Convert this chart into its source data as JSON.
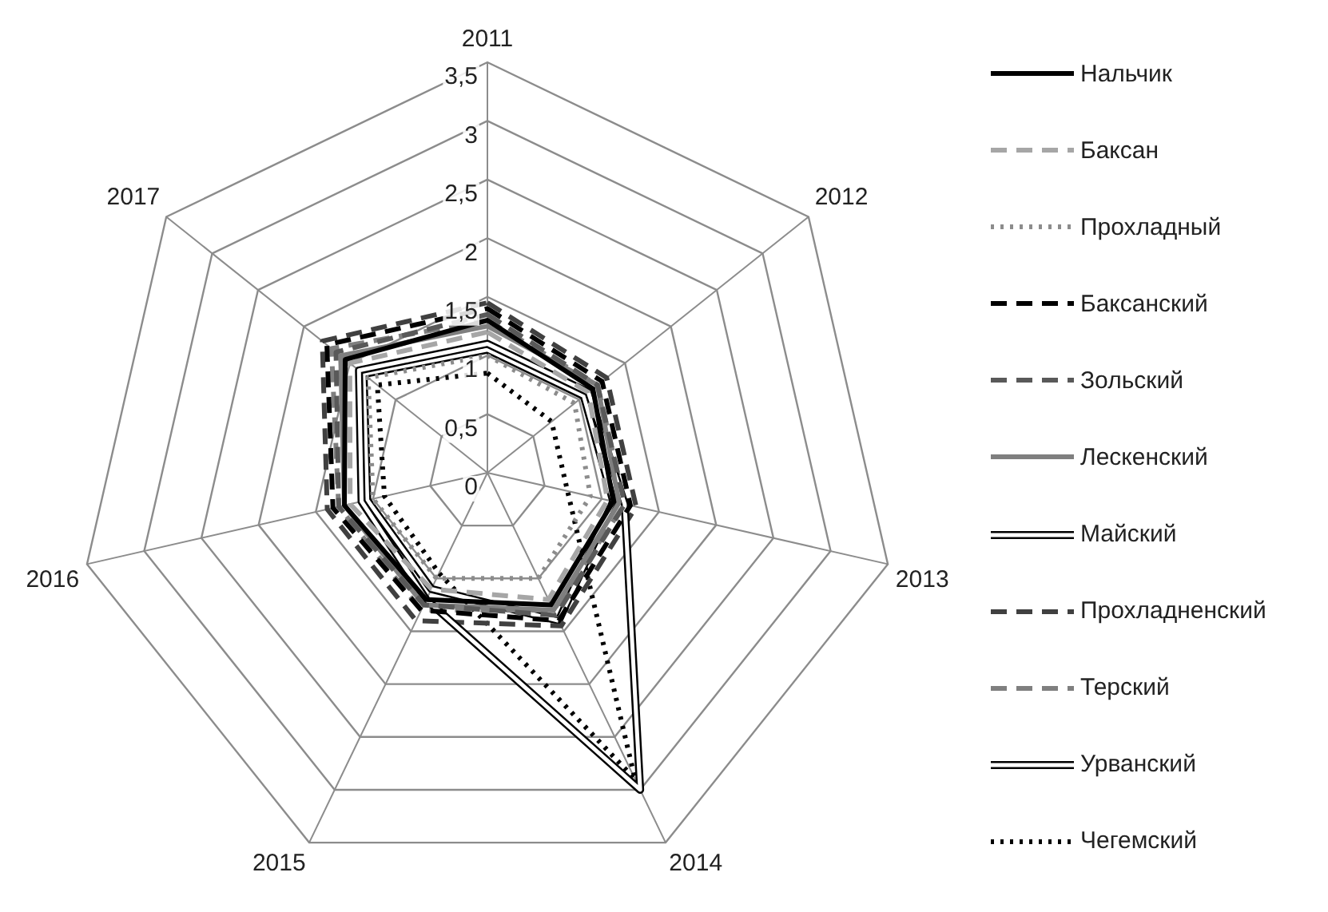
{
  "chart_data": {
    "type": "radar",
    "categories": [
      "2011",
      "2012",
      "2013",
      "2014",
      "2015",
      "2016",
      "2017"
    ],
    "ylim": [
      0,
      3.5
    ],
    "yticks": [
      0,
      {
        "value": 0.5,
        "label": "0,5"
      },
      1,
      {
        "value": 1.5,
        "label": "1,5"
      },
      2,
      {
        "value": 2.5,
        "label": "2,5"
      },
      3,
      {
        "value": 3.5,
        "label": "3,5"
      }
    ],
    "grid": true,
    "legend": "right",
    "marker": "none",
    "series": [
      {
        "name": "Нальчик",
        "color": "#000000",
        "line_style": "solid",
        "values": [
          1.3,
          1.15,
          1.1,
          1.25,
          1.2,
          1.25,
          1.55
        ]
      },
      {
        "name": "Баксан",
        "color": "#a6a6a6",
        "line_style": "dashed",
        "values": [
          1.2,
          1.1,
          1.05,
          1.2,
          1.1,
          1.2,
          1.5
        ]
      },
      {
        "name": "Прохладный",
        "color": "#8c8c8c",
        "line_style": "dotted",
        "values": [
          1.0,
          0.95,
          0.9,
          1.0,
          1.0,
          1.0,
          1.3
        ]
      },
      {
        "name": "Баксанский",
        "color": "#000000",
        "line_style": "dashed",
        "values": [
          1.4,
          1.25,
          1.25,
          1.4,
          1.3,
          1.35,
          1.75
        ]
      },
      {
        "name": "Зольский",
        "color": "#595959",
        "line_style": "dashed",
        "values": [
          1.35,
          1.2,
          1.2,
          1.35,
          1.25,
          1.3,
          1.65
        ]
      },
      {
        "name": "Лескенский",
        "color": "#7f7f7f",
        "line_style": "solid",
        "values": [
          1.25,
          1.2,
          1.15,
          1.3,
          1.25,
          1.25,
          1.6
        ]
      },
      {
        "name": "Майский",
        "color": "#ffffff",
        "line_style": "solid",
        "values": [
          1.1,
          1.1,
          1.2,
          3.0,
          1.2,
          1.1,
          1.4
        ]
      },
      {
        "name": "Прохладненский",
        "color": "#404040",
        "line_style": "dashed",
        "values": [
          1.45,
          1.3,
          1.3,
          1.45,
          1.4,
          1.4,
          1.8
        ]
      },
      {
        "name": "Терский",
        "color": "#7f7f7f",
        "line_style": "dashed",
        "values": [
          1.3,
          1.2,
          1.2,
          1.3,
          1.3,
          1.3,
          1.7
        ]
      },
      {
        "name": "Урванский",
        "color": "#ffffff",
        "line_style": "solid",
        "values": [
          1.05,
          1.05,
          1.1,
          1.4,
          1.1,
          1.05,
          1.35
        ]
      },
      {
        "name": "Чегемский",
        "color": "#000000",
        "line_style": "dotted",
        "values": [
          0.85,
          0.7,
          0.7,
          2.9,
          0.95,
          0.9,
          1.2
        ]
      }
    ]
  }
}
